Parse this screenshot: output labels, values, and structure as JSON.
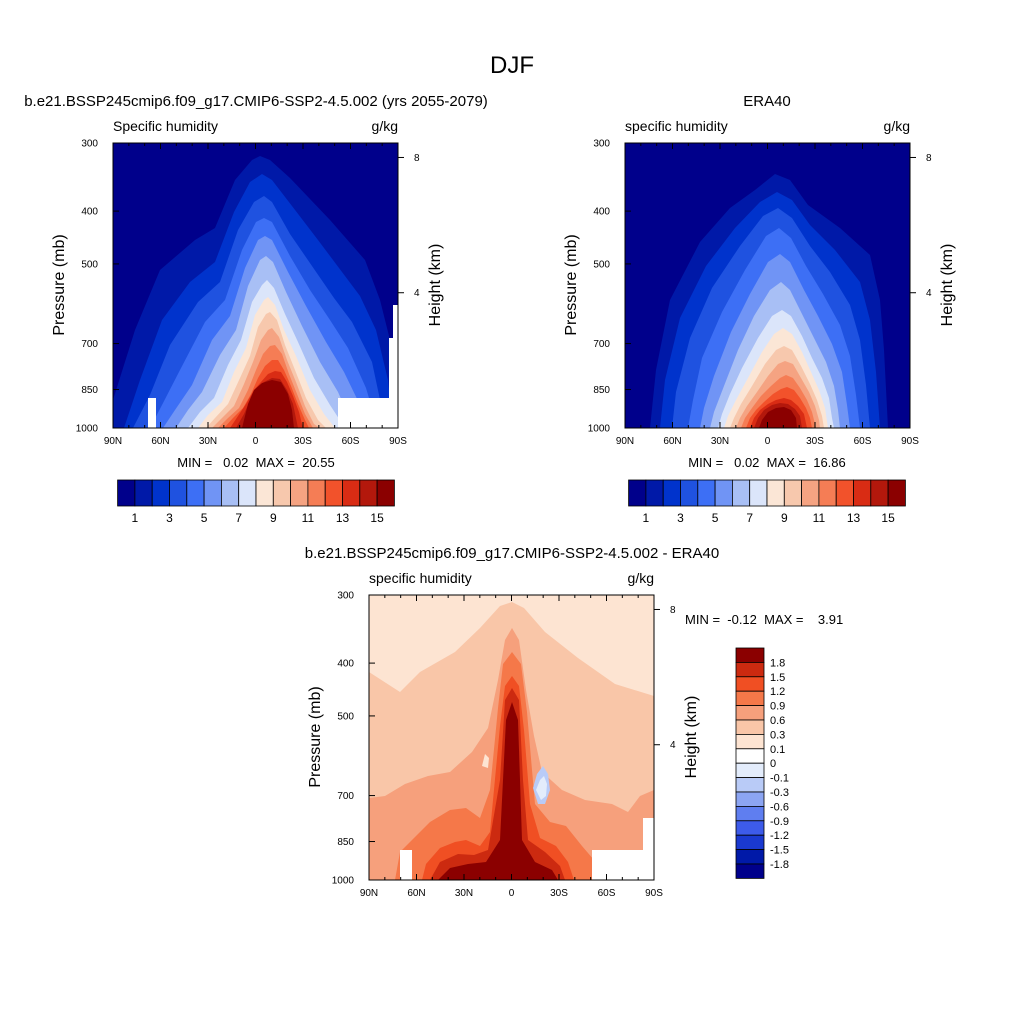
{
  "title": "DJF",
  "chart_data": [
    {
      "type": "heatmap",
      "title": "b.e21.BSSP245cmip6.f09_g17.CMIP6-SSP2-4.5.002 (yrs 2055-2079)",
      "left_string": "Specific humidity",
      "right_string": "g/kg",
      "ylabel": "Pressure (mb)",
      "y2label": "Height (km)",
      "x_ticks": [
        "90N",
        "60N",
        "30N",
        "0",
        "30S",
        "60S",
        "90S"
      ],
      "y_ticks": [
        "300",
        "400",
        "500",
        "700",
        "850",
        "1000"
      ],
      "y2_ticks": [
        "8",
        "4"
      ],
      "stats": "MIN =   0.02  MAX =  20.55",
      "min": 0.02,
      "max": 20.55,
      "colorbar_labels": [
        "1",
        "3",
        "5",
        "7",
        "9",
        "11",
        "13",
        "15"
      ],
      "levels": [
        0.5,
        1,
        2,
        3,
        4,
        5,
        6,
        7,
        8,
        9,
        10,
        11,
        12,
        13,
        14,
        15
      ]
    },
    {
      "type": "heatmap",
      "title": "ERA40",
      "left_string": "specific humidity",
      "right_string": "g/kg",
      "ylabel": "Pressure (mb)",
      "y2label": "Height (km)",
      "x_ticks": [
        "90N",
        "60N",
        "30N",
        "0",
        "30S",
        "60S",
        "90S"
      ],
      "y_ticks": [
        "300",
        "400",
        "500",
        "700",
        "850",
        "1000"
      ],
      "y2_ticks": [
        "8",
        "4"
      ],
      "stats": "MIN =   0.02  MAX =  16.86",
      "min": 0.02,
      "max": 16.86,
      "colorbar_labels": [
        "1",
        "3",
        "5",
        "7",
        "9",
        "11",
        "13",
        "15"
      ],
      "levels": [
        0.5,
        1,
        2,
        3,
        4,
        5,
        6,
        7,
        8,
        9,
        10,
        11,
        12,
        13,
        14,
        15
      ]
    },
    {
      "type": "heatmap",
      "title": "b.e21.BSSP245cmip6.f09_g17.CMIP6-SSP2-4.5.002 - ERA40",
      "left_string": "specific humidity",
      "right_string": "g/kg",
      "ylabel": "Pressure (mb)",
      "y2label": "Height (km)",
      "x_ticks": [
        "90N",
        "60N",
        "30N",
        "0",
        "30S",
        "60S",
        "90S"
      ],
      "y_ticks": [
        "300",
        "400",
        "500",
        "700",
        "850",
        "1000"
      ],
      "y2_ticks": [
        "8",
        "4"
      ],
      "stats": "MIN =  -0.12  MAX =    3.91",
      "min": -0.12,
      "max": 3.91,
      "colorbar_labels": [
        "1.8",
        "1.5",
        "1.2",
        "0.9",
        "0.6",
        "0.3",
        "0.1",
        "0",
        "-0.1",
        "-0.3",
        "-0.6",
        "-0.9",
        "-1.2",
        "-1.5",
        "-1.8"
      ],
      "levels": [
        -1.8,
        -1.5,
        -1.2,
        -0.9,
        -0.6,
        -0.3,
        -0.1,
        0,
        0.1,
        0.3,
        0.6,
        0.9,
        1.2,
        1.5,
        1.8
      ]
    }
  ],
  "colors": {
    "seq": [
      "#00008b",
      "#0019a8",
      "#0033cc",
      "#1f52e0",
      "#3d6ff5",
      "#7094f5",
      "#a8bff5",
      "#dbe5fa",
      "#fbe6d6",
      "#f7c8ad",
      "#f5a382",
      "#f57d55",
      "#f2522b",
      "#d92c14",
      "#b3180c",
      "#8b0000"
    ],
    "div": [
      "#00008b",
      "#0019a8",
      "#1a39d0",
      "#3d5bea",
      "#5f7ef0",
      "#8ca5f2",
      "#b9cbf7",
      "#e3ecfb",
      "#ffffff",
      "#fde4d2",
      "#f9c6a8",
      "#f6a07c",
      "#f57849",
      "#f04f23",
      "#cc2a10",
      "#8b0000"
    ]
  }
}
